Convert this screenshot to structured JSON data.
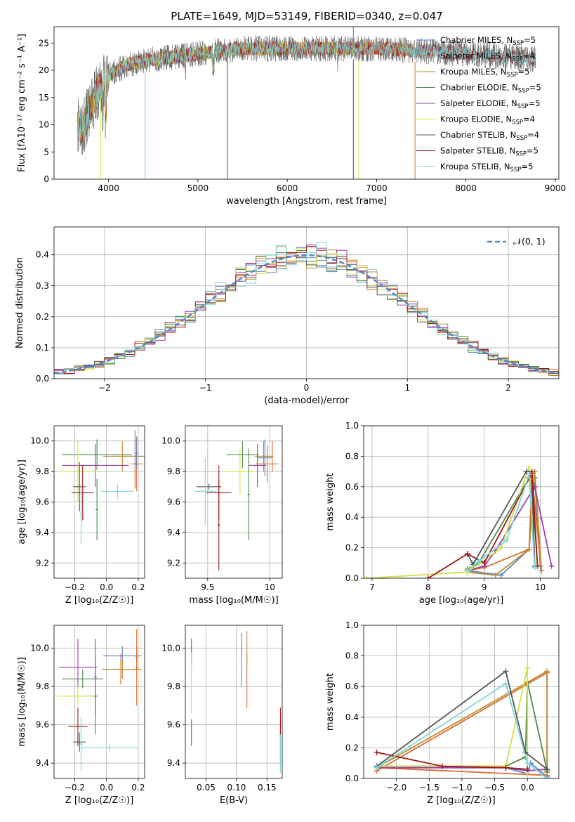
{
  "chart_data": [
    {
      "panel": "spectrum",
      "type": "line",
      "title": "PLATE=1649, MJD=53149, FIBERID=0340, z=0.047",
      "xlabel": "wavelength [Angstrom, rest frame]",
      "ylabel": "Flux [fλ10⁻¹⁷ erg cm⁻² s⁻¹ A⁻¹]",
      "xlim": [
        3390,
        9040
      ],
      "ylim": [
        0,
        28
      ],
      "xticks": [
        4000,
        5000,
        6000,
        7000,
        8000,
        9000
      ],
      "yticks": [
        0,
        5,
        10,
        15,
        20,
        25
      ],
      "legend_position": "upper-right",
      "series": [
        {
          "name": "Chabrier MILES, N",
          "sub": "SSP",
          "tail": "=5",
          "color": "#5a86c7",
          "x_range": [
            3650,
            7430
          ]
        },
        {
          "name": "Salpeter MILES, N",
          "sub": "SSP",
          "tail": "=4",
          "color": "#d96a2b",
          "x_range": [
            3650,
            7430
          ]
        },
        {
          "name": "Kroupa MILES, N",
          "sub": "SSP",
          "tail": "=5",
          "color": "#c08a2a",
          "x_range": [
            3650,
            7430
          ]
        },
        {
          "name": "Chabrier ELODIE, N",
          "sub": "SSP",
          "tail": "=5",
          "color": "#4a8a4a",
          "x_range": [
            3650,
            6800
          ]
        },
        {
          "name": "Salpeter ELODIE, N",
          "sub": "SSP",
          "tail": "=5",
          "color": "#9a3fb0",
          "x_range": [
            3650,
            6800
          ]
        },
        {
          "name": "Kroupa ELODIE, N",
          "sub": "SSP",
          "tail": "=4",
          "color": "#d4e040",
          "x_range": [
            3650,
            6800
          ]
        },
        {
          "name": "Chabrier STELIB, N",
          "sub": "SSP",
          "tail": "=4",
          "color": "#555555",
          "x_range": [
            3650,
            8780
          ]
        },
        {
          "name": "Salpeter STELIB, N",
          "sub": "SSP",
          "tail": "=5",
          "color": "#a01818",
          "x_range": [
            3650,
            8780
          ]
        },
        {
          "name": "Kroupa STELIB, N",
          "sub": "SSP",
          "tail": "=5",
          "color": "#7fd6d6",
          "x_range": [
            3650,
            8780
          ]
        }
      ],
      "continuum": {
        "x": [
          3650,
          3700,
          3800,
          3900,
          4000,
          4200,
          4500,
          5000,
          5500,
          6000,
          6500,
          7000,
          7500,
          8000,
          8500,
          8780
        ],
        "y": [
          10,
          9,
          13,
          17,
          19,
          21,
          22,
          23,
          24,
          24,
          24,
          24,
          23.5,
          23,
          22.5,
          22
        ]
      }
    },
    {
      "panel": "residuals",
      "type": "line",
      "xlabel": "(data-model)/error",
      "ylabel": "Normed distribution",
      "xlim": [
        -2.5,
        2.5
      ],
      "ylim": [
        0,
        0.49
      ],
      "xticks": [
        -2,
        -1,
        0,
        1,
        2
      ],
      "yticks": [
        0.0,
        0.1,
        0.2,
        0.3,
        0.4
      ],
      "legend": "𝒩(0, 1)",
      "legend_position": "upper-right",
      "bin_width": 0.1,
      "grid": true
    },
    {
      "panel": "age-vs-Z",
      "type": "scatter",
      "xlabel": "Z [log₁₀(Z/Z☉)]",
      "ylabel": "age  [log₁₀(age/yr)]",
      "xlim": [
        -0.33,
        0.24
      ],
      "ylim": [
        9.1,
        10.1
      ],
      "xticks": [
        -0.2,
        0.0,
        0.2
      ],
      "xtick_labels": [
        "−0.2",
        "0.0",
        "0.2"
      ],
      "yticks": [
        9.2,
        9.4,
        9.6,
        9.8,
        10.0
      ],
      "points": [
        {
          "c": 0,
          "x": 0.18,
          "xe": 0.08,
          "y": 9.9,
          "ye": 0.17
        },
        {
          "c": 1,
          "x": 0.19,
          "xe": 0.04,
          "y": 9.85,
          "ye": 0.18
        },
        {
          "c": 2,
          "x": 0.1,
          "xe": 0.12,
          "y": 9.9,
          "ye": 0.1
        },
        {
          "c": 3,
          "x": -0.06,
          "xe": 0.22,
          "y": 9.91,
          "ye": 0.1
        },
        {
          "c": 4,
          "x": -0.07,
          "xe": 0.21,
          "y": 9.84,
          "ye": 0.14
        },
        {
          "c": 5,
          "x": -0.18,
          "xe": 0.13,
          "y": 9.8,
          "ye": 0.2
        },
        {
          "c": 6,
          "x": -0.17,
          "xe": 0.04,
          "y": 9.7,
          "ye": 0.16
        },
        {
          "c": 7,
          "x": -0.15,
          "xe": 0.07,
          "y": 9.66,
          "ye": 0.18
        },
        {
          "c": 8,
          "x": 0.07,
          "xe": 0.1,
          "y": 9.67,
          "ye": 0.05
        },
        {
          "c": 8,
          "x": -0.16,
          "xe": 0.01,
          "y": 9.52,
          "ye": 0.2
        },
        {
          "c": 3,
          "x": -0.06,
          "xe": 0.01,
          "y": 9.55,
          "ye": 0.2
        },
        {
          "c": 1,
          "x": 0.18,
          "xe": 0.01,
          "y": 9.85,
          "ye": 0.16
        },
        {
          "c": 0,
          "x": 0.19,
          "xe": 0.01,
          "y": 9.92,
          "ye": 0.1
        }
      ]
    },
    {
      "panel": "age-vs-mass",
      "type": "scatter",
      "xlabel": "mass [log₁₀(M/M☉)]",
      "ylabel": "",
      "xlim": [
        9.32,
        10.1
      ],
      "ylim": [
        9.1,
        10.1
      ],
      "xticks": [
        9.5,
        10.0
      ],
      "yticks": [
        9.2,
        9.4,
        9.6,
        9.8,
        10.0
      ],
      "points": [
        {
          "c": 0,
          "x": 9.96,
          "xe": 0.06,
          "y": 9.89,
          "ye": 0.12
        },
        {
          "c": 1,
          "x": 9.98,
          "xe": 0.09,
          "y": 9.85,
          "ye": 0.12
        },
        {
          "c": 2,
          "x": 9.95,
          "xe": 0.07,
          "y": 9.9,
          "ye": 0.1
        },
        {
          "c": 3,
          "x": 9.78,
          "xe": 0.13,
          "y": 9.91,
          "ye": 0.09
        },
        {
          "c": 4,
          "x": 9.9,
          "xe": 0.07,
          "y": 9.84,
          "ye": 0.14
        },
        {
          "c": 5,
          "x": 9.76,
          "xe": 0.12,
          "y": 9.8,
          "ye": 0.15
        },
        {
          "c": 6,
          "x": 9.51,
          "xe": 0.1,
          "y": 9.7,
          "ye": 0.02
        },
        {
          "c": 7,
          "x": 9.59,
          "xe": 0.1,
          "y": 9.66,
          "ye": 0.18
        },
        {
          "c": 8,
          "x": 9.48,
          "xe": 0.09,
          "y": 9.67,
          "ye": 0.22
        },
        {
          "c": 7,
          "x": 9.59,
          "xe": 0.01,
          "y": 9.45,
          "ye": 0.3
        },
        {
          "c": 3,
          "x": 9.83,
          "xe": 0.01,
          "y": 9.65,
          "ye": 0.3
        },
        {
          "c": 1,
          "x": 10.02,
          "xe": 0.01,
          "y": 9.9,
          "ye": 0.1
        }
      ]
    },
    {
      "panel": "mass-weight-vs-age",
      "type": "line",
      "xlabel": "age  [log₁₀(age/yr)]",
      "ylabel": "mass weight",
      "xlim": [
        6.85,
        10.33
      ],
      "ylim": [
        0,
        1.0
      ],
      "xticks": [
        7,
        8,
        9,
        10
      ],
      "yticks": [
        0.0,
        0.2,
        0.4,
        0.6,
        0.8,
        1.0
      ],
      "series": [
        {
          "c": 0,
          "x": [
            8.7,
            9.3,
            9.8,
            9.9,
            10.0
          ],
          "y": [
            0.05,
            0.02,
            0.19,
            0.66,
            0.08
          ]
        },
        {
          "c": 1,
          "x": [
            8.7,
            9.0,
            9.8,
            9.85,
            10.02
          ],
          "y": [
            0.05,
            0.07,
            0.19,
            0.67,
            0.05
          ]
        },
        {
          "c": 2,
          "x": [
            8.7,
            9.2,
            9.8,
            9.9,
            10.02
          ],
          "y": [
            0.04,
            0.02,
            0.19,
            0.7,
            0.05
          ]
        },
        {
          "c": 3,
          "x": [
            8.7,
            8.9,
            9.8,
            9.85,
            9.95
          ],
          "y": [
            0.06,
            0.1,
            0.66,
            0.62,
            0.08
          ]
        },
        {
          "c": 4,
          "x": [
            8.7,
            9.0,
            9.2,
            9.9,
            10.2
          ],
          "y": [
            0.05,
            0.08,
            0.18,
            0.6,
            0.08
          ]
        },
        {
          "c": 5,
          "x": [
            6.9,
            8.7,
            9.3,
            9.8,
            9.9
          ],
          "y": [
            0.0,
            0.04,
            0.2,
            0.73,
            0.08
          ]
        },
        {
          "c": 6,
          "x": [
            8.7,
            8.8,
            9.75,
            9.85,
            9.9
          ],
          "y": [
            0.16,
            0.09,
            0.7,
            0.7,
            0.08
          ]
        },
        {
          "c": 7,
          "x": [
            8.0,
            8.7,
            9.0,
            9.85,
            9.95
          ],
          "y": [
            0.0,
            0.16,
            0.1,
            0.69,
            0.08
          ]
        },
        {
          "c": 8,
          "x": [
            8.7,
            8.9,
            9.4,
            9.8,
            9.9
          ],
          "y": [
            0.05,
            0.11,
            0.25,
            0.68,
            0.07
          ]
        }
      ]
    },
    {
      "panel": "mass-vs-Z",
      "type": "scatter",
      "xlabel": "Z [log₁₀(Z/Z☉)]",
      "ylabel": "mass [log₁₀(M/M☉)]",
      "xlim": [
        -0.33,
        0.24
      ],
      "ylim": [
        9.32,
        10.12
      ],
      "xticks": [
        -0.2,
        0.0,
        0.2
      ],
      "xtick_labels": [
        "−0.2",
        "0.0",
        "0.2"
      ],
      "yticks": [
        9.4,
        9.6,
        9.8,
        10.0
      ],
      "points": [
        {
          "c": 0,
          "x": 0.1,
          "xe": 0.12,
          "y": 9.96,
          "ye": 0.05
        },
        {
          "c": 1,
          "x": 0.09,
          "xe": 0.12,
          "y": 9.89,
          "ye": 0.08
        },
        {
          "c": 2,
          "x": 0.1,
          "xe": 0.12,
          "y": 9.89,
          "ye": 0.05
        },
        {
          "c": 3,
          "x": -0.15,
          "xe": 0.13,
          "y": 9.84,
          "ye": 0.05
        },
        {
          "c": 4,
          "x": -0.18,
          "xe": 0.12,
          "y": 9.9,
          "ye": 0.15
        },
        {
          "c": 5,
          "x": -0.18,
          "xe": 0.13,
          "y": 9.75,
          "ye": 0.05
        },
        {
          "c": 6,
          "x": -0.17,
          "xe": 0.04,
          "y": 9.51,
          "ye": 0.05
        },
        {
          "c": 7,
          "x": -0.18,
          "xe": 0.06,
          "y": 9.59,
          "ye": 0.1
        },
        {
          "c": 8,
          "x": 0.02,
          "xe": 0.18,
          "y": 9.48,
          "ye": 0.02
        },
        {
          "c": 8,
          "x": -0.16,
          "xe": 0.01,
          "y": 9.5,
          "ye": 0.14
        },
        {
          "c": 2,
          "x": 0.19,
          "xe": 0.01,
          "y": 9.95,
          "ye": 0.06
        },
        {
          "c": 4,
          "x": -0.07,
          "xe": 0.01,
          "y": 9.85,
          "ye": 0.2
        },
        {
          "c": 3,
          "x": -0.07,
          "xe": 0.01,
          "y": 9.75,
          "ye": 0.2
        },
        {
          "c": 1,
          "x": 0.19,
          "xe": 0.01,
          "y": 9.9,
          "ye": 0.2
        }
      ]
    },
    {
      "panel": "mass-vs-EBV",
      "type": "scatter",
      "xlabel": "E(B-V)",
      "ylabel": "",
      "xlim": [
        0.016,
        0.175
      ],
      "ylim": [
        9.32,
        10.12
      ],
      "xticks": [
        0.05,
        0.1,
        0.15
      ],
      "xtick_labels": [
        "0.05",
        "0.10",
        "0.15"
      ],
      "yticks": [
        9.4,
        9.6,
        9.8,
        10.0
      ],
      "points": [
        {
          "c": 0,
          "x": 0.108,
          "xe": 0.0,
          "y": 9.94,
          "ye": 0.14
        },
        {
          "c": 1,
          "x": 0.117,
          "xe": 0.0,
          "y": 9.83,
          "ye": 0.14
        },
        {
          "c": 2,
          "x": 0.117,
          "xe": 0.0,
          "y": 10.0,
          "ye": 0.09
        },
        {
          "c": 3,
          "x": 0.026,
          "xe": 0.0,
          "y": 9.56,
          "ye": 0.07
        },
        {
          "c": 4,
          "x": 0.026,
          "xe": 0.0,
          "y": 9.98,
          "ye": 0.07
        },
        {
          "c": 5,
          "x": 0.026,
          "xe": 0.0,
          "y": 9.82,
          "ye": 0.16
        },
        {
          "c": 6,
          "x": 0.172,
          "xe": 0.0,
          "y": 9.5,
          "ye": 0.1
        },
        {
          "c": 7,
          "x": 0.172,
          "xe": 0.0,
          "y": 9.62,
          "ye": 0.07
        },
        {
          "c": 8,
          "x": 0.172,
          "xe": 0.0,
          "y": 9.45,
          "ye": 0.1
        }
      ]
    },
    {
      "panel": "mass-weight-vs-Z",
      "type": "line",
      "xlabel": "Z [log₁₀(Z/Z☉)]",
      "ylabel": "mass weight",
      "xlim": [
        -2.5,
        0.48
      ],
      "ylim": [
        0,
        1.0
      ],
      "xticks": [
        -2.0,
        -1.5,
        -1.0,
        -0.5,
        0.0
      ],
      "xtick_labels": [
        "−2.0",
        "−1.5",
        "−1.0",
        "−0.5",
        "0.0"
      ],
      "yticks": [
        0.0,
        0.2,
        0.4,
        0.6,
        0.8,
        1.0
      ],
      "series": [
        {
          "c": 0,
          "x": [
            -2.3,
            -0.33,
            0.0,
            0.05,
            0.3
          ],
          "y": [
            0.07,
            0.07,
            0.03,
            0.1,
            0.01
          ]
        },
        {
          "c": 1,
          "x": [
            -2.3,
            0.3,
            0.3,
            -2.3
          ],
          "y": [
            0.05,
            0.69,
            0.02,
            0.07
          ]
        },
        {
          "c": 2,
          "x": [
            -2.3,
            0.3,
            0.3
          ],
          "y": [
            0.07,
            0.7,
            0.04
          ]
        },
        {
          "c": 3,
          "x": [
            -2.3,
            -0.33,
            -0.03,
            0.0,
            0.3
          ],
          "y": [
            0.08,
            0.08,
            0.14,
            0.63,
            0.05
          ]
        },
        {
          "c": 4,
          "x": [
            -2.3,
            -0.33,
            0.0,
            0.3
          ],
          "y": [
            0.07,
            0.07,
            0.05,
            0.06
          ]
        },
        {
          "c": 5,
          "x": [
            -2.3,
            -0.33,
            0.0,
            0.0
          ],
          "y": [
            0.08,
            0.08,
            0.72,
            0.03
          ]
        },
        {
          "c": 6,
          "x": [
            -2.3,
            -0.33,
            -0.03,
            0.3
          ],
          "y": [
            0.08,
            0.7,
            0.17,
            0.06
          ]
        },
        {
          "c": 7,
          "x": [
            -2.3,
            -1.3,
            -0.33,
            0.0
          ],
          "y": [
            0.17,
            0.08,
            0.07,
            0.06
          ]
        },
        {
          "c": 8,
          "x": [
            -2.3,
            -0.33,
            0.0,
            0.3
          ],
          "y": [
            0.07,
            0.62,
            0.1,
            0.0
          ]
        }
      ]
    }
  ]
}
